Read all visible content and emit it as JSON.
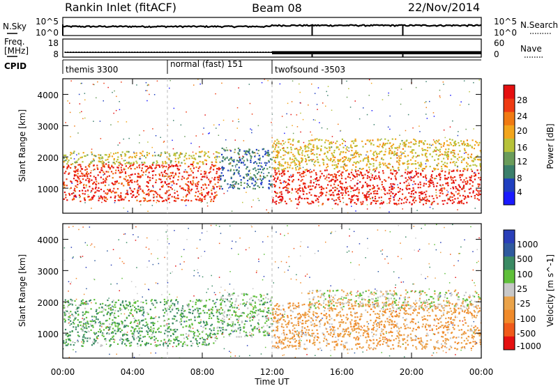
{
  "header": {
    "station": "Rankin Inlet (fitACF)",
    "beam": "Beam 08",
    "date": "22/Nov/2014"
  },
  "noise_panel": {
    "left_label": "N.Sky",
    "right_label": "N.Search",
    "left_ticks": [
      "10^5",
      "10^0"
    ],
    "right_ticks": [
      "10^5",
      "10^0"
    ]
  },
  "freq_panel": {
    "left_label_line1": "Freq.",
    "left_label_line2": "[MHz]",
    "left_ticks": [
      "18",
      "8"
    ],
    "right_label": "Nave",
    "right_ticks": [
      "60",
      "0"
    ]
  },
  "cpid_panel": {
    "label": "CPID",
    "segments": [
      {
        "name": "themis 3300",
        "start_h": 0
      },
      {
        "name": "normal (fast) 151",
        "start_h": 6
      },
      {
        "name": "twofsound -3503",
        "start_h": 12
      }
    ]
  },
  "x_axis": {
    "label": "Time UT",
    "ticks": [
      "00:00",
      "04:00",
      "08:00",
      "12:00",
      "16:00",
      "20:00",
      "00:00"
    ]
  },
  "power_panel": {
    "ylabel": "Slant Range [km]",
    "yticks": [
      "1000",
      "2000",
      "3000",
      "4000"
    ],
    "colorbar_label": "Power [dB]",
    "colorbar_ticks": [
      "4",
      "8",
      "12",
      "16",
      "20",
      "24",
      "28"
    ]
  },
  "velocity_panel": {
    "ylabel": "Slant Range [km]",
    "yticks": [
      "1000",
      "2000",
      "3000",
      "4000"
    ],
    "colorbar_label": "Velocity [m s^-1]",
    "colorbar_ticks": [
      "1000",
      "500",
      "100",
      "25",
      "-25",
      "-100",
      "-500",
      "-1000"
    ]
  },
  "colors": {
    "power_scale": [
      "#1a1aff",
      "#1f3fbf",
      "#3b7f6b",
      "#6a9c5a",
      "#b7c23a",
      "#f2a51c",
      "#f07a12",
      "#ee3a12",
      "#e50f0f"
    ],
    "velocity_scale": [
      "#2a3fb8",
      "#2f5a9e",
      "#3a8a63",
      "#5fbf3a",
      "#c8c8c8",
      "#eaa34a",
      "#f08a2a",
      "#f05a1a",
      "#e51010"
    ]
  },
  "chart_data": [
    {
      "type": "line",
      "title": "Rankin Inlet (fitACF)",
      "xlabel": "",
      "ylabel": "N.Sky",
      "x_range_hours": [
        0,
        24
      ],
      "yscale": "log",
      "ylim": [
        1,
        100000
      ],
      "series": [
        {
          "name": "N.Sky",
          "x": [
            0,
            4,
            8,
            12,
            16,
            20,
            24
          ],
          "values": [
            300,
            300,
            300,
            500,
            600,
            600,
            600
          ]
        }
      ]
    },
    {
      "type": "line",
      "xlabel": "",
      "ylabel": "Freq. [MHz]",
      "x_range_hours": [
        0,
        24
      ],
      "ylim": [
        8,
        18
      ],
      "series": [
        {
          "name": "Freq.",
          "x": [
            0,
            12,
            12,
            24
          ],
          "values": [
            10.5,
            10.5,
            10.5,
            10.5
          ]
        }
      ]
    },
    {
      "type": "heatmap",
      "title": "Power",
      "xlabel": "Time UT",
      "ylabel": "Slant Range [km]",
      "x_range_hours": [
        0,
        24
      ],
      "ylim": [
        200,
        4500
      ],
      "zlabel": "Power [dB]",
      "zlim": [
        0,
        30
      ],
      "regions": [
        {
          "x": [
            0,
            9
          ],
          "y": [
            600,
            1800
          ],
          "z": 26
        },
        {
          "x": [
            0,
            9
          ],
          "y": [
            1800,
            2200
          ],
          "z": 16
        },
        {
          "x": [
            9,
            12
          ],
          "y": [
            1000,
            2300
          ],
          "z": 8
        },
        {
          "x": [
            12,
            24
          ],
          "y": [
            500,
            1600
          ],
          "z": 27
        },
        {
          "x": [
            12,
            24
          ],
          "y": [
            1600,
            2600
          ],
          "z": 17
        }
      ]
    },
    {
      "type": "heatmap",
      "title": "Velocity",
      "xlabel": "Time UT",
      "ylabel": "Slant Range [km]",
      "x_range_hours": [
        0,
        24
      ],
      "ylim": [
        200,
        4500
      ],
      "zlabel": "Velocity [m s^-1]",
      "zlim": [
        -1000,
        1000
      ],
      "regions": [
        {
          "x": [
            0,
            9
          ],
          "y": [
            600,
            2100
          ],
          "z": 300
        },
        {
          "x": [
            9,
            12
          ],
          "y": [
            900,
            2300
          ],
          "z": 200
        },
        {
          "x": [
            12,
            24
          ],
          "y": [
            500,
            2000
          ],
          "z": -300
        },
        {
          "x": [
            14,
            24
          ],
          "y": [
            1800,
            2400
          ],
          "z": 0
        }
      ]
    }
  ]
}
